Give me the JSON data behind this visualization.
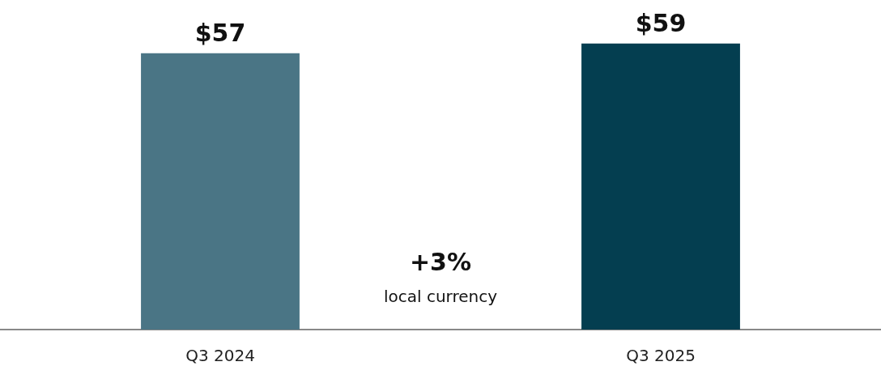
{
  "chart_data": {
    "type": "bar",
    "categories": [
      "Q3 2024",
      "Q3 2025"
    ],
    "values": [
      57,
      59
    ],
    "colors": [
      "#4a7585",
      "#043e50"
    ],
    "value_labels": [
      "$57",
      "$59"
    ],
    "ylim": [
      0,
      68
    ],
    "annotations": [
      "+3%",
      "local currency"
    ]
  }
}
